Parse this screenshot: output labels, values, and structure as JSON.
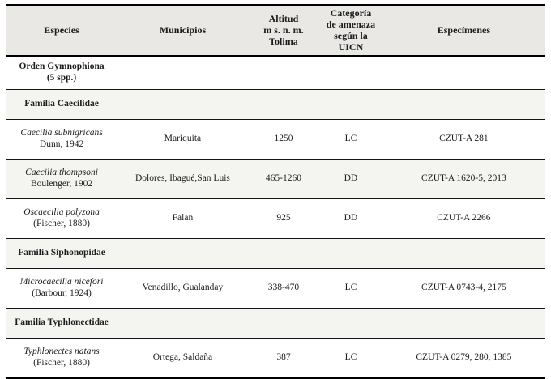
{
  "table": {
    "header": {
      "especies": "Especies",
      "municipios": "Municipios",
      "altitud_lines": [
        "Altitud",
        "m s. n. m.",
        "Tolima"
      ],
      "categoria_lines": [
        "Categoría",
        "de amenaza",
        "según la",
        "UICN"
      ],
      "especimenes": "Especímenes"
    },
    "rows": [
      {
        "kind": "order",
        "line1": "Orden Gymnophiona",
        "line2": "(5 spp.)"
      },
      {
        "kind": "family",
        "label": "Familia Caecilidae"
      },
      {
        "kind": "species",
        "name": "Caecilia subnigricans",
        "author": "Dunn, 1942",
        "municipios": "Mariquita",
        "altitud": "1250",
        "uicn": "LC",
        "especimenes": "CZUT-A 281"
      },
      {
        "kind": "species",
        "name": "Caecilia thompsoni",
        "author": "Boulenger, 1902",
        "municipios": "Dolores, Ibagué,San Luis",
        "altitud": "465-1260",
        "uicn": "DD",
        "especimenes": "CZUT-A 1620-5, 2013"
      },
      {
        "kind": "species",
        "name": "Oscaecilia polyzona",
        "author": "(Fischer, 1880)",
        "municipios": "Falan",
        "altitud": "925",
        "uicn": "DD",
        "especimenes": "CZUT-A 2266"
      },
      {
        "kind": "family",
        "label": "Familia Siphonopidae"
      },
      {
        "kind": "species",
        "name": "Microcaecilia nicefori",
        "author": "(Barbour, 1924)",
        "municipios": "Venadillo, Gualanday",
        "altitud": "338-470",
        "uicn": "LC",
        "especimenes": "CZUT-A 0743-4, 2175"
      },
      {
        "kind": "family",
        "label": "Familia Typhlonectidae"
      },
      {
        "kind": "species",
        "name": "Typhlonectes natans",
        "author": "(Fischer, 1880)",
        "municipios": "Ortega, Saldaña",
        "altitud": "387",
        "uicn": "LC",
        "especimenes": "CZUT-A 0279, 280, 1385"
      }
    ],
    "colors": {
      "header_bg": "#e9e8e5",
      "stripe_bg": "#f4f4f1",
      "rule": "#000000"
    }
  }
}
